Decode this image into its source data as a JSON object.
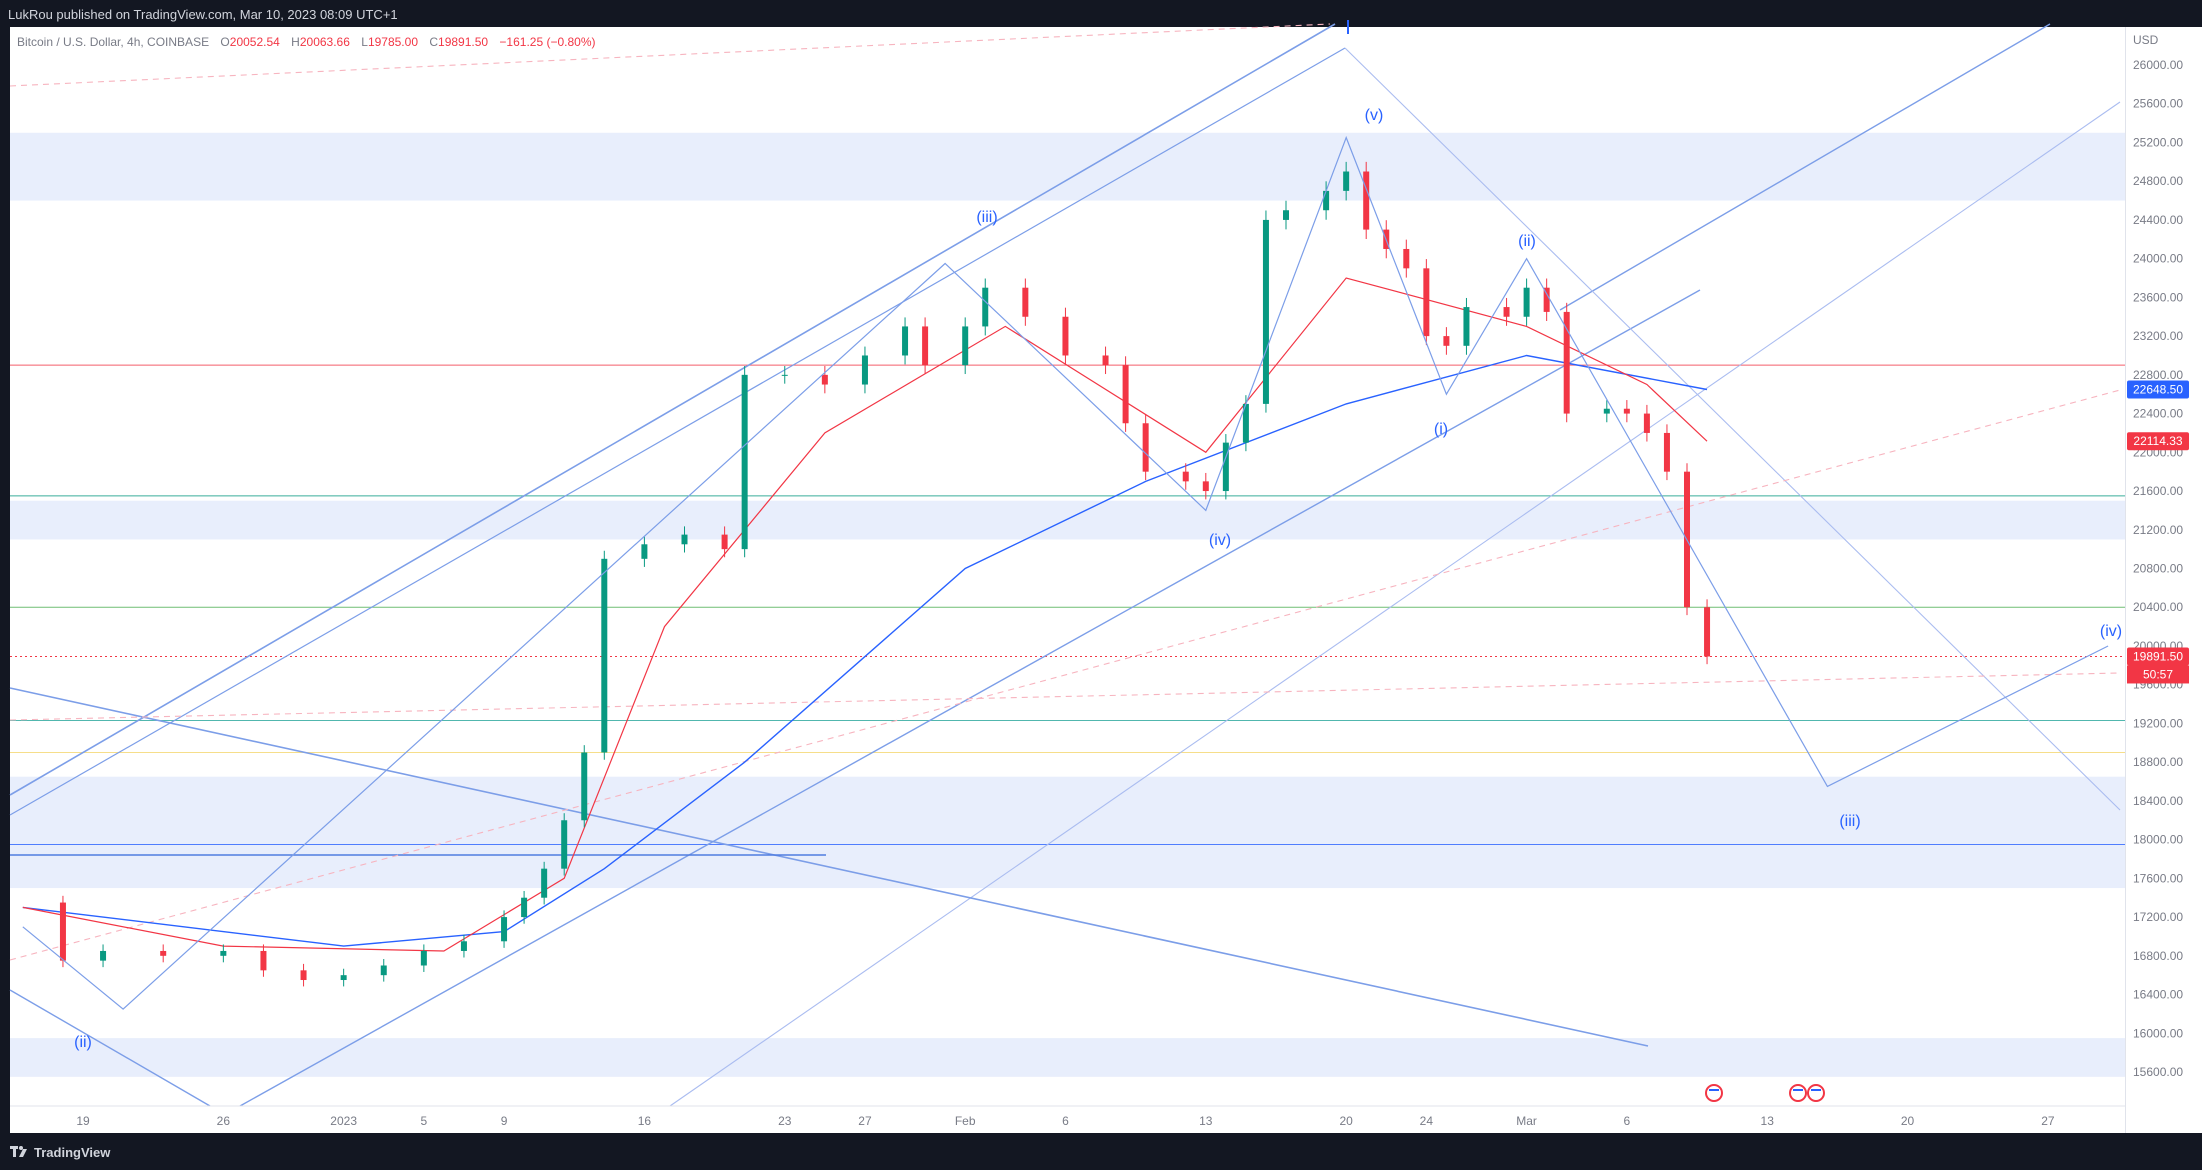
{
  "header": {
    "published_text": "LukRou published on TradingView.com, Mar 10, 2023 08:09 UTC+1"
  },
  "legend": {
    "symbol_text": "Bitcoin / U.S. Dollar, 4h, COINBASE",
    "open_label": "O",
    "open_value": "20052.54",
    "high_label": "H",
    "high_value": "20063.66",
    "low_label": "L",
    "low_value": "19785.00",
    "close_label": "C",
    "close_value": "19891.50",
    "change_value": "−161.25 (−0.80%)"
  },
  "footer": {
    "brand": "TradingView"
  },
  "colors": {
    "accent_blue": "#2962ff",
    "bear_red": "#f23645",
    "bull_green": "#089981",
    "trendline_blue": "#7c9ee8",
    "zone_fill": "#e8eefc"
  },
  "chart_data": {
    "type": "candlestick",
    "title": "Bitcoin / U.S. Dollar, 4h, COINBASE",
    "price_axis_unit": "USD",
    "yticks": [
      "26000.00",
      "25600.00",
      "25200.00",
      "24800.00",
      "24400.00",
      "24000.00",
      "23600.00",
      "23200.00",
      "22800.00",
      "22400.00",
      "22000.00",
      "21600.00",
      "21200.00",
      "20800.00",
      "20400.00",
      "20000.00",
      "19600.00",
      "19200.00",
      "18800.00",
      "18400.00",
      "18000.00",
      "17600.00",
      "17200.00",
      "16800.00",
      "16400.00",
      "16000.00",
      "15600.00"
    ],
    "ylim": [
      15400,
      26600
    ],
    "xticks": [
      "19",
      "26",
      "2023",
      "5",
      "9",
      "16",
      "23",
      "27",
      "Feb",
      "6",
      "13",
      "20",
      "24",
      "Mar",
      "6",
      "13",
      "20",
      "27"
    ],
    "price_labels": {
      "ma_blue": "22648.50",
      "ma_red": "22114.33",
      "last_price": "19891.50",
      "countdown": "50:57"
    },
    "wave_labels": [
      "(ii)",
      "(iii)",
      "(iv)",
      "(v)",
      "(i)",
      "(ii)",
      "(iii)",
      "(iv)"
    ],
    "swing_path": [
      {
        "date": "Dec 16",
        "price": 17100
      },
      {
        "date": "Dec 21",
        "price": 16250
      },
      {
        "date": "Jan 31",
        "price": 23950
      },
      {
        "date": "Feb 13",
        "price": 21400
      },
      {
        "date": "Feb 20",
        "price": 25250
      },
      {
        "date": "Feb 25",
        "price": 22600
      },
      {
        "date": "Mar 1",
        "price": 24000
      },
      {
        "date": "Mar 16",
        "price": 18550
      },
      {
        "date": "Mar 30",
        "price": 20000
      }
    ],
    "horizontal_levels": [
      {
        "price": 22900,
        "color": "#f23645"
      },
      {
        "price": 21550,
        "color": "#089981"
      },
      {
        "price": 20400,
        "color": "#4caf50"
      },
      {
        "price": 19230,
        "color": "#26a69a"
      },
      {
        "price": 18900,
        "color": "#f5d76e"
      },
      {
        "price": 17950,
        "color": "#2962ff"
      }
    ],
    "zones": [
      {
        "from": 24600,
        "to": 25300
      },
      {
        "from": 21100,
        "to": 21500
      },
      {
        "from": 17500,
        "to": 18650
      },
      {
        "from": 15550,
        "to": 15950
      }
    ],
    "close_series": [
      {
        "date": "Dec 16",
        "close": 17350
      },
      {
        "date": "Dec 18",
        "close": 16750
      },
      {
        "date": "Dec 20",
        "close": 16850
      },
      {
        "date": "Dec 23",
        "close": 16800
      },
      {
        "date": "Dec 26",
        "close": 16850
      },
      {
        "date": "Dec 28",
        "close": 16650
      },
      {
        "date": "Dec 30",
        "close": 16550
      },
      {
        "date": "Jan 1",
        "close": 16600
      },
      {
        "date": "Jan 3",
        "close": 16700
      },
      {
        "date": "Jan 5",
        "close": 16850
      },
      {
        "date": "Jan 7",
        "close": 16950
      },
      {
        "date": "Jan 9",
        "close": 17200
      },
      {
        "date": "Jan 10",
        "close": 17400
      },
      {
        "date": "Jan 11",
        "close": 17700
      },
      {
        "date": "Jan 12",
        "close": 18200
      },
      {
        "date": "Jan 13",
        "close": 18900
      },
      {
        "date": "Jan 14",
        "close": 20900
      },
      {
        "date": "Jan 16",
        "close": 21050
      },
      {
        "date": "Jan 18",
        "close": 21150
      },
      {
        "date": "Jan 20",
        "close": 21000
      },
      {
        "date": "Jan 21",
        "close": 22800
      },
      {
        "date": "Jan 23",
        "close": 22800
      },
      {
        "date": "Jan 25",
        "close": 22700
      },
      {
        "date": "Jan 27",
        "close": 23000
      },
      {
        "date": "Jan 29",
        "close": 23300
      },
      {
        "date": "Jan 30",
        "close": 22900
      },
      {
        "date": "Feb 1",
        "close": 23300
      },
      {
        "date": "Feb 2",
        "close": 23700
      },
      {
        "date": "Feb 4",
        "close": 23400
      },
      {
        "date": "Feb 6",
        "close": 23000
      },
      {
        "date": "Feb 8",
        "close": 22900
      },
      {
        "date": "Feb 9",
        "close": 22300
      },
      {
        "date": "Feb 10",
        "close": 21800
      },
      {
        "date": "Feb 12",
        "close": 21700
      },
      {
        "date": "Feb 13",
        "close": 21600
      },
      {
        "date": "Feb 14",
        "close": 22100
      },
      {
        "date": "Feb 15",
        "close": 22500
      },
      {
        "date": "Feb 16",
        "close": 24400
      },
      {
        "date": "Feb 17",
        "close": 24500
      },
      {
        "date": "Feb 19",
        "close": 24700
      },
      {
        "date": "Feb 20",
        "close": 24900
      },
      {
        "date": "Feb 21",
        "close": 24300
      },
      {
        "date": "Feb 22",
        "close": 24100
      },
      {
        "date": "Feb 23",
        "close": 23900
      },
      {
        "date": "Feb 24",
        "close": 23200
      },
      {
        "date": "Feb 25",
        "close": 23100
      },
      {
        "date": "Feb 26",
        "close": 23500
      },
      {
        "date": "Feb 28",
        "close": 23400
      },
      {
        "date": "Mar 1",
        "close": 23700
      },
      {
        "date": "Mar 2",
        "close": 23450
      },
      {
        "date": "Mar 3",
        "close": 22400
      },
      {
        "date": "Mar 5",
        "close": 22450
      },
      {
        "date": "Mar 6",
        "close": 22400
      },
      {
        "date": "Mar 7",
        "close": 22200
      },
      {
        "date": "Mar 8",
        "close": 21800
      },
      {
        "date": "Mar 9",
        "close": 20400
      },
      {
        "date": "Mar 10",
        "close": 19891.5
      }
    ],
    "ma_blue_series": [
      {
        "date": "Dec 16",
        "value": 17300
      },
      {
        "date": "Jan 1",
        "value": 16900
      },
      {
        "date": "Jan 9",
        "value": 17050
      },
      {
        "date": "Jan 14",
        "value": 17700
      },
      {
        "date": "Jan 21",
        "value": 18800
      },
      {
        "date": "Feb 1",
        "value": 20800
      },
      {
        "date": "Feb 10",
        "value": 21700
      },
      {
        "date": "Feb 20",
        "value": 22500
      },
      {
        "date": "Mar 1",
        "value": 23000
      },
      {
        "date": "Mar 10",
        "value": 22648.5
      }
    ],
    "ma_red_series": [
      {
        "date": "Dec 16",
        "value": 17300
      },
      {
        "date": "Dec 26",
        "value": 16900
      },
      {
        "date": "Jan 6",
        "value": 16850
      },
      {
        "date": "Jan 12",
        "value": 17600
      },
      {
        "date": "Jan 17",
        "value": 20200
      },
      {
        "date": "Jan 25",
        "value": 22200
      },
      {
        "date": "Feb 3",
        "value": 23300
      },
      {
        "date": "Feb 13",
        "value": 22000
      },
      {
        "date": "Feb 20",
        "value": 23800
      },
      {
        "date": "Mar 1",
        "value": 23300
      },
      {
        "date": "Mar 7",
        "value": 22700
      },
      {
        "date": "Mar 10",
        "value": 22114.33
      }
    ]
  }
}
